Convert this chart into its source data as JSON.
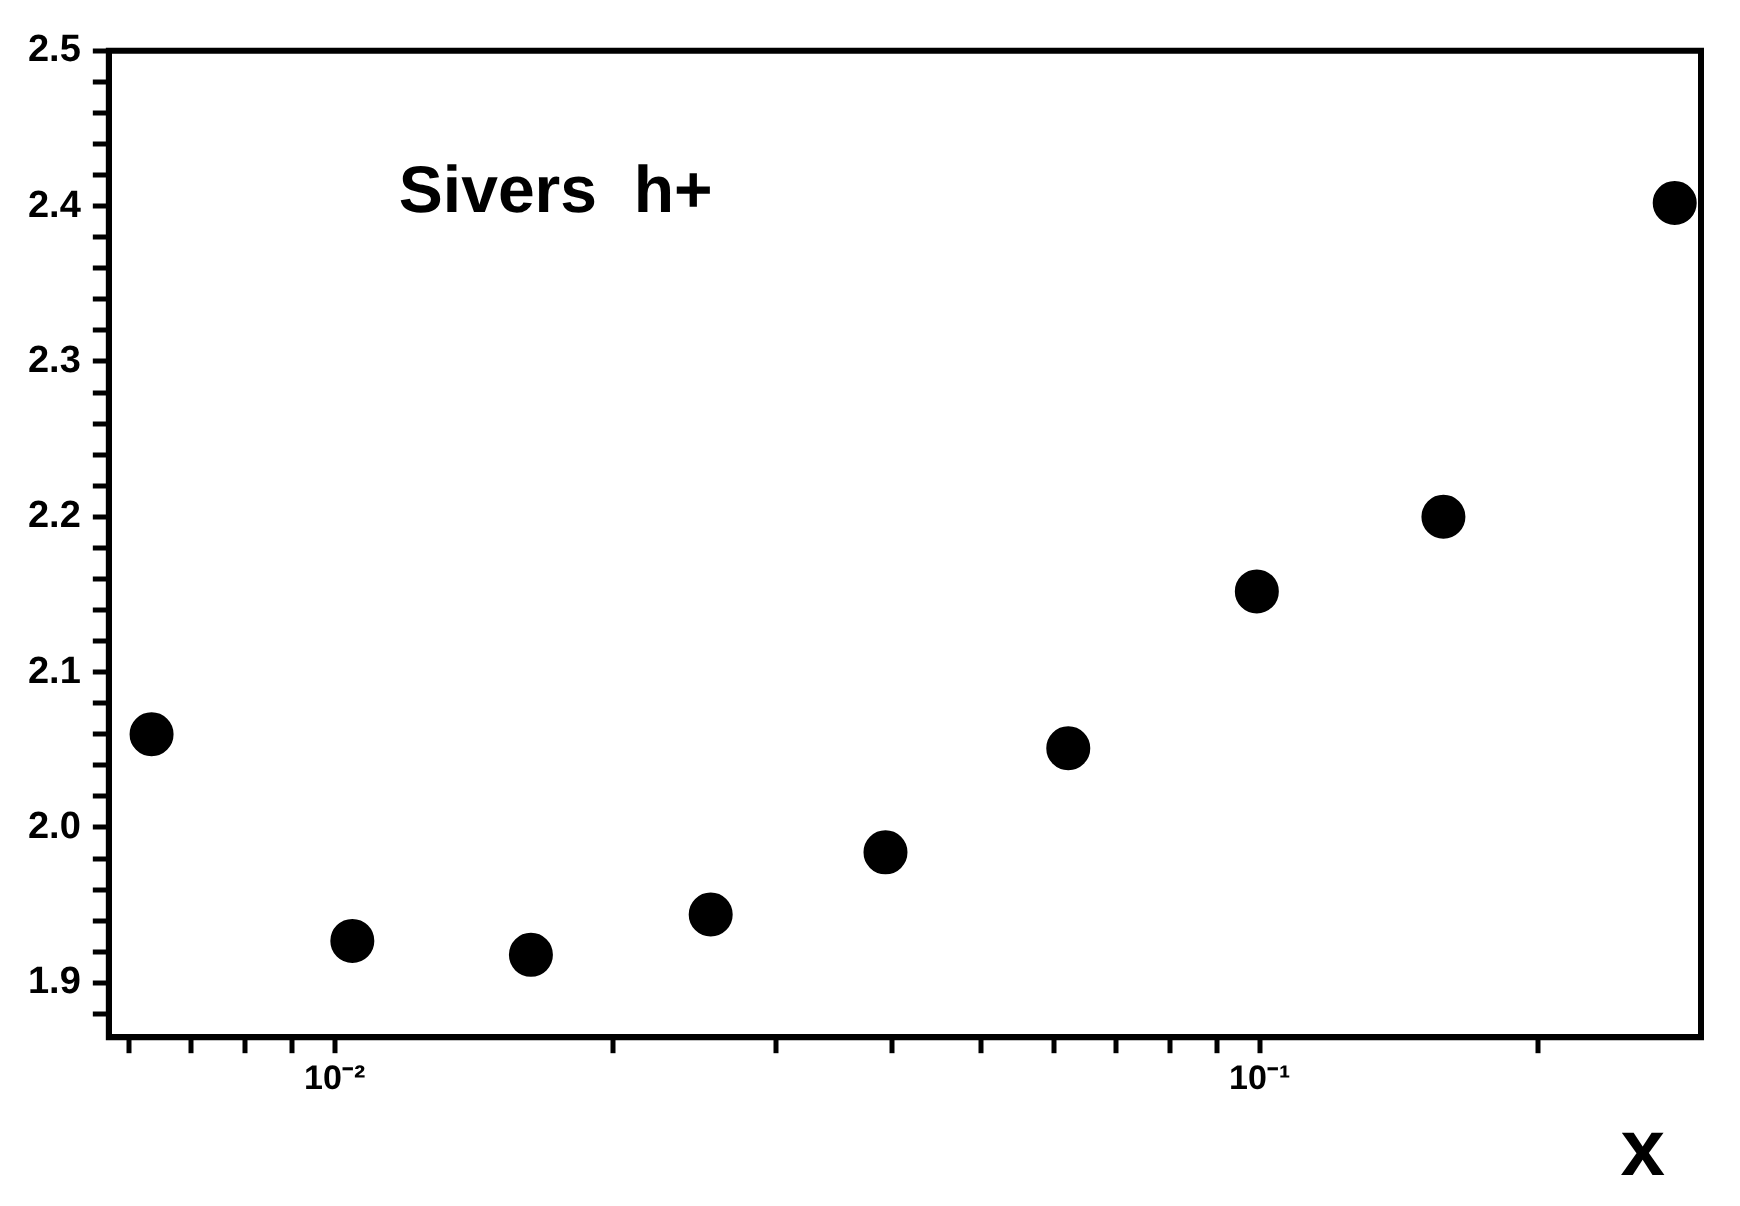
{
  "chart_data": {
    "type": "scatter",
    "xlabel": "x",
    "annotations": [
      "Sivers  h+"
    ],
    "x": [
      0.00634,
      0.01045,
      0.0163,
      0.0255,
      0.0394,
      0.0621,
      0.0993,
      0.158,
      0.281
    ],
    "series": [
      {
        "color": "#000000",
        "values": [
          2.06,
          1.927,
          1.918,
          1.944,
          1.984,
          2.051,
          2.152,
          2.2,
          2.402
        ]
      }
    ],
    "log": "x",
    "xlim": [
      0.0057,
      0.3
    ],
    "xticks": [
      {
        "value": 0.006,
        "label": null
      },
      {
        "value": 0.007,
        "label": null
      },
      {
        "value": 0.008,
        "label": null
      },
      {
        "value": 0.009,
        "label": null
      },
      {
        "value": 0.01,
        "label": "10⁻²"
      },
      {
        "value": 0.02,
        "label": null
      },
      {
        "value": 0.03,
        "label": null
      },
      {
        "value": 0.04,
        "label": null
      },
      {
        "value": 0.05,
        "label": null
      },
      {
        "value": 0.06,
        "label": null
      },
      {
        "value": 0.07,
        "label": null
      },
      {
        "value": 0.08,
        "label": null
      },
      {
        "value": 0.09,
        "label": null
      },
      {
        "value": 0.1,
        "label": "10⁻¹"
      },
      {
        "value": 0.2,
        "label": null
      }
    ],
    "ylim": [
      1.865,
      2.5
    ],
    "yticks": [
      {
        "value": 1.88,
        "label": null
      },
      {
        "value": 1.9,
        "label": "1.9"
      },
      {
        "value": 1.92,
        "label": null
      },
      {
        "value": 1.94,
        "label": null
      },
      {
        "value": 1.96,
        "label": null
      },
      {
        "value": 1.98,
        "label": null
      },
      {
        "value": 2.0,
        "label": "2.0"
      },
      {
        "value": 2.02,
        "label": null
      },
      {
        "value": 2.04,
        "label": null
      },
      {
        "value": 2.06,
        "label": null
      },
      {
        "value": 2.08,
        "label": null
      },
      {
        "value": 2.1,
        "label": "2.1"
      },
      {
        "value": 2.12,
        "label": null
      },
      {
        "value": 2.14,
        "label": null
      },
      {
        "value": 2.16,
        "label": null
      },
      {
        "value": 2.18,
        "label": null
      },
      {
        "value": 2.2,
        "label": "2.2"
      },
      {
        "value": 2.22,
        "label": null
      },
      {
        "value": 2.24,
        "label": null
      },
      {
        "value": 2.26,
        "label": null
      },
      {
        "value": 2.28,
        "label": null
      },
      {
        "value": 2.3,
        "label": "2.3"
      },
      {
        "value": 2.32,
        "label": null
      },
      {
        "value": 2.34,
        "label": null
      },
      {
        "value": 2.36,
        "label": null
      },
      {
        "value": 2.38,
        "label": null
      },
      {
        "value": 2.4,
        "label": "2.4"
      },
      {
        "value": 2.42,
        "label": null
      },
      {
        "value": 2.44,
        "label": null
      },
      {
        "value": 2.46,
        "label": null
      },
      {
        "value": 2.48,
        "label": null
      },
      {
        "value": 2.5,
        "label": "2.5"
      }
    ],
    "grid": false,
    "legend": false,
    "marker": "circle"
  }
}
